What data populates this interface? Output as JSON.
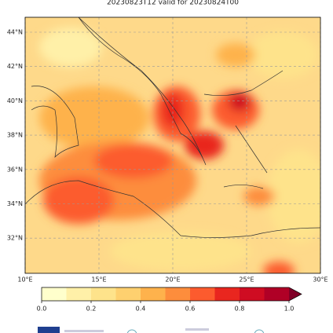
{
  "title": "20230823T12 valid for 20230824T00",
  "lat_ticks": [
    {
      "value": 44,
      "label": "44°N"
    },
    {
      "value": 42,
      "label": "42°N"
    },
    {
      "value": 40,
      "label": "40°N"
    },
    {
      "value": 38,
      "label": "38°N"
    },
    {
      "value": 36,
      "label": "36°N"
    },
    {
      "value": 34,
      "label": "34°N"
    },
    {
      "value": 32,
      "label": "32°N"
    }
  ],
  "lon_ticks": [
    {
      "value": 10,
      "label": "10°E"
    },
    {
      "value": 15,
      "label": "15°E"
    },
    {
      "value": 20,
      "label": "20°E"
    },
    {
      "value": 25,
      "label": "25°E"
    },
    {
      "value": 30,
      "label": "30°E"
    }
  ],
  "colorbar": {
    "vlim": [
      0,
      1
    ],
    "extend": "max",
    "colors": [
      "#ffffcc",
      "#fff0a8",
      "#fee38b",
      "#fed06f",
      "#feb24c",
      "#fd8d3c",
      "#fc5b2e",
      "#e9261f",
      "#cf0c22",
      "#b00026"
    ],
    "extend_color": "#800026",
    "ticks": [
      {
        "value": 0,
        "label": "0.0"
      },
      {
        "value": 0.2,
        "label": "0.2"
      },
      {
        "value": 0.4,
        "label": "0.4"
      },
      {
        "value": 0.6,
        "label": "0.6"
      },
      {
        "value": 0.8,
        "label": "0.8"
      },
      {
        "value": 1,
        "label": "1.0"
      }
    ]
  }
}
